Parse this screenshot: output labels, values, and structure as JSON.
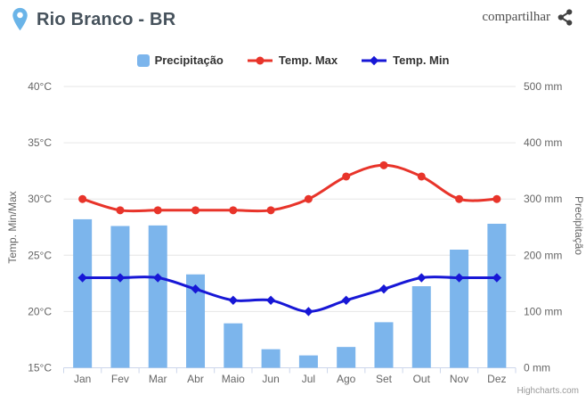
{
  "header": {
    "title": "Rio Branco - BR",
    "share_label": "compartilhar"
  },
  "legend": {
    "items": [
      {
        "label": "Precipitação",
        "symbol": "square",
        "color": "#7cb5ec"
      },
      {
        "label": "Temp. Max",
        "symbol": "line-circle",
        "color": "#e8342a"
      },
      {
        "label": "Temp. Min",
        "symbol": "line-diamond",
        "color": "#1717d6"
      }
    ]
  },
  "chart_data": {
    "type": "bar+line combo",
    "title": "",
    "categories": [
      "Jan",
      "Fev",
      "Mar",
      "Abr",
      "Maio",
      "Jun",
      "Jul",
      "Ago",
      "Set",
      "Out",
      "Nov",
      "Dez"
    ],
    "series": [
      {
        "name": "Precipitação",
        "type": "bar",
        "axis": "right",
        "unit": "mm",
        "color": "#7cb5ec",
        "marker": "none",
        "values": [
          264,
          252,
          253,
          166,
          79,
          33,
          22,
          37,
          81,
          145,
          210,
          256
        ]
      },
      {
        "name": "Temp. Max",
        "type": "line",
        "axis": "left",
        "unit": "°C",
        "color": "#e8342a",
        "marker": "circle",
        "values": [
          30,
          29,
          29,
          29,
          29,
          29,
          30,
          32,
          33,
          32,
          30,
          30
        ]
      },
      {
        "name": "Temp. Min",
        "type": "line",
        "axis": "left",
        "unit": "°C",
        "color": "#1717d6",
        "marker": "diamond",
        "values": [
          23,
          23,
          23,
          22,
          21,
          21,
          20,
          21,
          22,
          23,
          23,
          23
        ]
      }
    ],
    "left_axis": {
      "title": "Temp. Min/Max",
      "min": 15,
      "max": 40,
      "tick_labels": [
        "15°C",
        "20°C",
        "25°C",
        "30°C",
        "35°C",
        "40°C"
      ]
    },
    "right_axis": {
      "title": "Precipitação",
      "min": 0,
      "max": 500,
      "tick_labels": [
        "0 mm",
        "100 mm",
        "200 mm",
        "300 mm",
        "400 mm",
        "500 mm"
      ]
    },
    "grid": true,
    "legend_position": "top",
    "colors": {
      "grid_line": "#e6e6e6",
      "axis_line": "#ccd6eb",
      "axis_label": "#666666"
    }
  },
  "credit": "Highcharts.com"
}
